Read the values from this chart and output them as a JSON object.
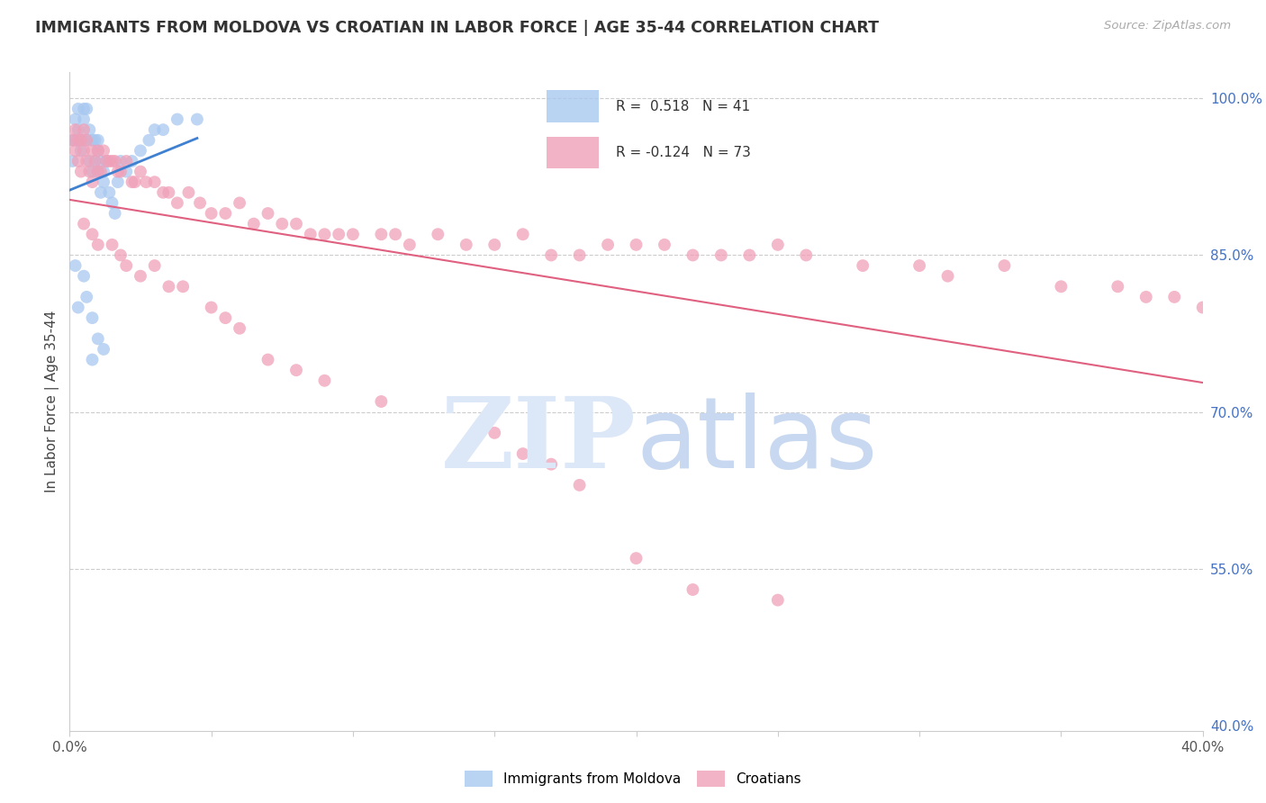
{
  "title": "IMMIGRANTS FROM MOLDOVA VS CROATIAN IN LABOR FORCE | AGE 35-44 CORRELATION CHART",
  "source": "Source: ZipAtlas.com",
  "ylabel": "In Labor Force | Age 35-44",
  "xlim": [
    0.0,
    0.4
  ],
  "ylim": [
    0.395,
    1.025
  ],
  "blue_color": "#A8C8F0",
  "pink_color": "#F0A0B8",
  "blue_line_color": "#4080D0",
  "pink_line_color": "#E06080",
  "moldova_x": [
    0.001,
    0.001,
    0.002,
    0.002,
    0.003,
    0.003,
    0.003,
    0.004,
    0.004,
    0.005,
    0.005,
    0.005,
    0.006,
    0.006,
    0.007,
    0.007,
    0.008,
    0.008,
    0.009,
    0.009,
    0.01,
    0.01,
    0.01,
    0.011,
    0.011,
    0.012,
    0.012,
    0.013,
    0.014,
    0.015,
    0.016,
    0.017,
    0.018,
    0.02,
    0.022,
    0.025,
    0.028,
    0.03,
    0.033,
    0.038,
    0.045
  ],
  "moldova_y": [
    0.96,
    0.94,
    0.98,
    0.96,
    0.99,
    0.97,
    0.96,
    0.96,
    0.95,
    0.99,
    0.98,
    0.96,
    0.99,
    0.96,
    0.97,
    0.94,
    0.96,
    0.93,
    0.96,
    0.94,
    0.96,
    0.95,
    0.93,
    0.94,
    0.91,
    0.93,
    0.92,
    0.94,
    0.91,
    0.9,
    0.89,
    0.92,
    0.94,
    0.93,
    0.94,
    0.95,
    0.96,
    0.97,
    0.97,
    0.98,
    0.98
  ],
  "moldova_low_x": [
    0.002,
    0.003,
    0.005,
    0.006,
    0.008,
    0.008,
    0.01,
    0.012
  ],
  "moldova_low_y": [
    0.84,
    0.8,
    0.83,
    0.81,
    0.79,
    0.75,
    0.77,
    0.76
  ],
  "croatian_x": [
    0.001,
    0.002,
    0.002,
    0.003,
    0.003,
    0.004,
    0.004,
    0.005,
    0.005,
    0.006,
    0.006,
    0.007,
    0.008,
    0.008,
    0.009,
    0.01,
    0.01,
    0.011,
    0.012,
    0.013,
    0.014,
    0.015,
    0.016,
    0.017,
    0.018,
    0.02,
    0.022,
    0.023,
    0.025,
    0.027,
    0.03,
    0.033,
    0.035,
    0.038,
    0.042,
    0.046,
    0.05,
    0.055,
    0.06,
    0.065,
    0.07,
    0.075,
    0.08,
    0.085,
    0.09,
    0.095,
    0.1,
    0.11,
    0.115,
    0.12,
    0.13,
    0.14,
    0.15,
    0.16,
    0.17,
    0.18,
    0.19,
    0.2,
    0.21,
    0.22,
    0.23,
    0.24,
    0.25,
    0.26,
    0.28,
    0.3,
    0.31,
    0.33,
    0.35,
    0.37,
    0.38,
    0.39,
    0.4
  ],
  "croatian_y": [
    0.96,
    0.97,
    0.95,
    0.96,
    0.94,
    0.96,
    0.93,
    0.97,
    0.95,
    0.96,
    0.94,
    0.93,
    0.95,
    0.92,
    0.94,
    0.95,
    0.93,
    0.93,
    0.95,
    0.94,
    0.94,
    0.94,
    0.94,
    0.93,
    0.93,
    0.94,
    0.92,
    0.92,
    0.93,
    0.92,
    0.92,
    0.91,
    0.91,
    0.9,
    0.91,
    0.9,
    0.89,
    0.89,
    0.9,
    0.88,
    0.89,
    0.88,
    0.88,
    0.87,
    0.87,
    0.87,
    0.87,
    0.87,
    0.87,
    0.86,
    0.87,
    0.86,
    0.86,
    0.87,
    0.85,
    0.85,
    0.86,
    0.86,
    0.86,
    0.85,
    0.85,
    0.85,
    0.86,
    0.85,
    0.84,
    0.84,
    0.83,
    0.84,
    0.82,
    0.82,
    0.81,
    0.81,
    0.8
  ],
  "croatian_low_x": [
    0.005,
    0.008,
    0.01,
    0.015,
    0.018,
    0.02,
    0.025,
    0.03,
    0.035,
    0.04,
    0.05,
    0.055,
    0.06,
    0.07,
    0.08,
    0.09,
    0.11,
    0.15,
    0.16,
    0.17,
    0.18,
    0.2,
    0.22,
    0.25
  ],
  "croatian_low_y": [
    0.88,
    0.87,
    0.86,
    0.86,
    0.85,
    0.84,
    0.83,
    0.84,
    0.82,
    0.82,
    0.8,
    0.79,
    0.78,
    0.75,
    0.74,
    0.73,
    0.71,
    0.68,
    0.66,
    0.65,
    0.63,
    0.56,
    0.53,
    0.52
  ]
}
